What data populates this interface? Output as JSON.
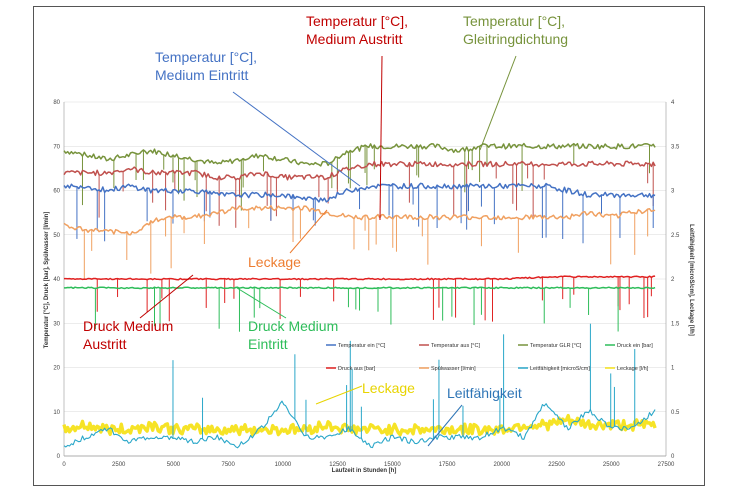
{
  "chart_data": {
    "type": "line",
    "xlabel": "Laufzeit in Stunden [h]",
    "ylabel_left": "Temperatur [°C], Druck [bar], Spülwasser [l/min]",
    "ylabel_right": "Leitfähigkeit [microS/cm], Leckage [l/h]",
    "xlim": [
      0,
      27500
    ],
    "ylim_left": [
      0,
      80
    ],
    "ylim_right": [
      0,
      4
    ],
    "x_ticks": [
      "0",
      "2500",
      "5000",
      "7500",
      "10000",
      "12500",
      "15000",
      "17500",
      "20000",
      "22500",
      "25000",
      "27500"
    ],
    "y_ticks_left": [
      "0",
      "10",
      "20",
      "30",
      "40",
      "50",
      "60",
      "70",
      "80"
    ],
    "y_ticks_right": [
      "0",
      "0.5",
      "1",
      "1.5",
      "2",
      "2.5",
      "3",
      "3.5",
      "4"
    ],
    "legend": [
      {
        "label": "Temperatur ein [°C]",
        "color": "#4472c4"
      },
      {
        "label": "Temperatur aus [°C]",
        "color": "#c0504d"
      },
      {
        "label": "Temperatur GLR [°C]",
        "color": "#77933c"
      },
      {
        "label": "Druck ein [bar]",
        "color": "#2ebd5a"
      },
      {
        "label": "Druck aus [bar]",
        "color": "#e02020"
      },
      {
        "label": "Spülwasser [l/min]",
        "color": "#f0a060"
      },
      {
        "label": "Leitfähigkeit [microS/cm]",
        "color": "#2aa7c9"
      },
      {
        "label": "Leckage [l/h]",
        "color": "#f5e21a"
      }
    ],
    "series": [
      {
        "name": "Temperatur GLR [°C]",
        "axis": "left",
        "color": "#77933c",
        "x": [
          0,
          1000,
          2000,
          3000,
          4000,
          5000,
          6000,
          7000,
          8000,
          9000,
          10000,
          11000,
          12000,
          13000,
          14000,
          15000,
          16000,
          17000,
          18000,
          19000,
          20000,
          21000,
          22000,
          23000,
          24000,
          25000,
          26000,
          27000
        ],
        "values": [
          69,
          68,
          67,
          68,
          69,
          68,
          67,
          66,
          67,
          68,
          67,
          66,
          66,
          69,
          70,
          70,
          70,
          70,
          69,
          70,
          70,
          70,
          70,
          70,
          70,
          70,
          70,
          70
        ]
      },
      {
        "name": "Temperatur aus [°C]",
        "axis": "left",
        "color": "#c0504d",
        "x": [
          0,
          1000,
          2000,
          3000,
          4000,
          5000,
          6000,
          7000,
          8000,
          9000,
          10000,
          11000,
          12000,
          13000,
          14000,
          15000,
          16000,
          17000,
          18000,
          19000,
          20000,
          21000,
          22000,
          23000,
          24000,
          25000,
          26000,
          27000
        ],
        "values": [
          64,
          64,
          64,
          65,
          64,
          64,
          64,
          63,
          63,
          64,
          63,
          63,
          63,
          65,
          66,
          66,
          66,
          66,
          66,
          66,
          66,
          66,
          66,
          66,
          66,
          66,
          66,
          66
        ]
      },
      {
        "name": "Temperatur ein [°C]",
        "axis": "left",
        "color": "#4472c4",
        "x": [
          0,
          1000,
          2000,
          3000,
          4000,
          5000,
          6000,
          7000,
          8000,
          9000,
          10000,
          11000,
          12000,
          13000,
          14000,
          15000,
          16000,
          17000,
          18000,
          19000,
          20000,
          21000,
          22000,
          23000,
          24000,
          25000,
          26000,
          27000
        ],
        "values": [
          61,
          61,
          60,
          61,
          60,
          60,
          60,
          59,
          59,
          59,
          59,
          58,
          58,
          60,
          61,
          61,
          61,
          61,
          61,
          61,
          61,
          61,
          61,
          60,
          59,
          59,
          59,
          59
        ]
      },
      {
        "name": "Spülwasser [l/min]",
        "axis": "left",
        "color": "#f0a060",
        "x": [
          0,
          1000,
          2000,
          3000,
          4000,
          5000,
          6000,
          7000,
          8000,
          9000,
          10000,
          11000,
          12000,
          13000,
          14000,
          15000,
          16000,
          17000,
          18000,
          19000,
          20000,
          21000,
          22000,
          23000,
          24000,
          25000,
          26000,
          27000
        ],
        "values": [
          52,
          51,
          51,
          50,
          53,
          54,
          54,
          55,
          56,
          56,
          56,
          56,
          55,
          54,
          54,
          54,
          54,
          54,
          54,
          54,
          54,
          54,
          54,
          54,
          55,
          54,
          55,
          56
        ]
      },
      {
        "name": "Druck aus [bar]",
        "axis": "left",
        "color": "#e02020",
        "x": [
          0,
          2500,
          5000,
          7500,
          10000,
          12500,
          15000,
          17500,
          20000,
          22500,
          25000,
          27000
        ],
        "values": [
          40,
          40,
          40,
          40,
          40,
          40,
          40,
          40,
          40,
          40.5,
          40.5,
          40.5
        ]
      },
      {
        "name": "Druck ein [bar]",
        "axis": "left",
        "color": "#2ebd5a",
        "x": [
          0,
          2500,
          5000,
          7500,
          10000,
          12500,
          15000,
          17500,
          20000,
          22500,
          25000,
          27000
        ],
        "values": [
          38,
          38,
          38,
          38,
          38,
          38,
          38,
          38,
          38,
          38,
          38,
          38
        ]
      },
      {
        "name": "Leckage [l/h]",
        "axis": "right",
        "color": "#f5e21a",
        "x": [
          0,
          1000,
          2000,
          3000,
          4000,
          5000,
          6000,
          7000,
          8000,
          9000,
          10000,
          11000,
          12000,
          13000,
          14000,
          15000,
          16000,
          17000,
          18000,
          19000,
          20000,
          21000,
          22000,
          23000,
          24000,
          25000,
          26000,
          27000
        ],
        "values": [
          0.3,
          0.35,
          0.3,
          0.3,
          0.35,
          0.3,
          0.3,
          0.3,
          0.3,
          0.3,
          0.3,
          0.3,
          0.35,
          0.3,
          0.3,
          0.3,
          0.3,
          0.3,
          0.3,
          0.3,
          0.3,
          0.35,
          0.35,
          0.4,
          0.35,
          0.35,
          0.35,
          0.35
        ]
      },
      {
        "name": "Leitfähigkeit [microS/cm]",
        "axis": "right",
        "color": "#2aa7c9",
        "x": [
          0,
          1000,
          2000,
          3000,
          4000,
          5000,
          6000,
          7000,
          8000,
          9000,
          10000,
          11000,
          12000,
          13000,
          14000,
          15000,
          16000,
          17000,
          18000,
          19000,
          20000,
          21000,
          22000,
          23000,
          24000,
          25000,
          26000,
          27000
        ],
        "values": [
          0.1,
          0.2,
          0.3,
          0.15,
          0.2,
          0.2,
          0.15,
          0.2,
          0.1,
          0.3,
          0.6,
          0.2,
          0.2,
          0.3,
          0.1,
          0.2,
          0.15,
          0.2,
          0.2,
          0.2,
          0.3,
          0.2,
          0.6,
          0.3,
          0.5,
          0.3,
          0.3,
          0.5
        ]
      }
    ],
    "annotations": [
      {
        "text_lines": [
          "Temperatur [°C],",
          "Medium Austritt"
        ],
        "color": "#c00000"
      },
      {
        "text_lines": [
          "Temperatur [°C],",
          "Gleitringdichtung"
        ],
        "color": "#77933c"
      },
      {
        "text_lines": [
          "Temperatur [°C],",
          "Medium Eintritt"
        ],
        "color": "#4472c4"
      },
      {
        "text_lines": [
          "Leckage"
        ],
        "color": "#ed7d31"
      },
      {
        "text_lines": [
          "Druck Medium",
          "Austritt"
        ],
        "color": "#c00000"
      },
      {
        "text_lines": [
          "Druck Medium",
          "Eintritt"
        ],
        "color": "#2ebd5a"
      },
      {
        "text_lines": [
          "Leckage"
        ],
        "color": "#e8d400"
      },
      {
        "text_lines": [
          "Leitfähigkeit"
        ],
        "color": "#2e75b6"
      }
    ]
  }
}
